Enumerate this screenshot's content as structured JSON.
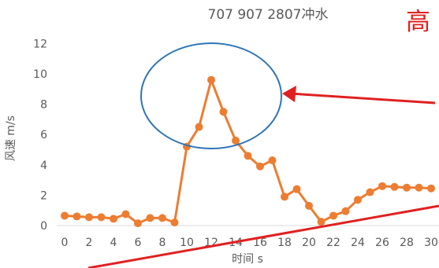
{
  "chart_data": {
    "type": "line",
    "title": "707 907 2807冲水",
    "xlabel": "时间 s",
    "ylabel": "风速 m/s",
    "xlim": [
      0,
      31
    ],
    "ylim": [
      0,
      12
    ],
    "x_ticks": [
      0,
      2,
      4,
      6,
      8,
      10,
      12,
      14,
      16,
      18,
      20,
      22,
      24,
      26,
      28,
      30
    ],
    "y_ticks": [
      0,
      2,
      4,
      6,
      8,
      10,
      12
    ],
    "grid": false,
    "series": [
      {
        "x": [
          0,
          1,
          2,
          3,
          4,
          5,
          6,
          7,
          8,
          9,
          10,
          11,
          12,
          13,
          14,
          15,
          16,
          17,
          18,
          19,
          20,
          21,
          22,
          23,
          24,
          25,
          26,
          27,
          28,
          29,
          30
        ],
        "y": [
          0.65,
          0.6,
          0.55,
          0.55,
          0.45,
          0.75,
          0.15,
          0.5,
          0.5,
          0.2,
          5.2,
          6.5,
          9.6,
          7.5,
          5.6,
          4.6,
          3.9,
          4.3,
          1.9,
          2.4,
          1.3,
          0.25,
          0.65,
          0.95,
          1.7,
          2.2,
          2.6,
          2.55,
          2.5,
          2.5,
          2.45
        ]
      }
    ],
    "annotations": {
      "corner_text": "高",
      "ellipse_color": "#2e75b6",
      "arrow_color": "#e02020"
    },
    "colors": {
      "line": "#ed7d31",
      "marker": "#ed7d31",
      "axis_text": "#595959",
      "axis_line": "#d9d9d9"
    }
  }
}
